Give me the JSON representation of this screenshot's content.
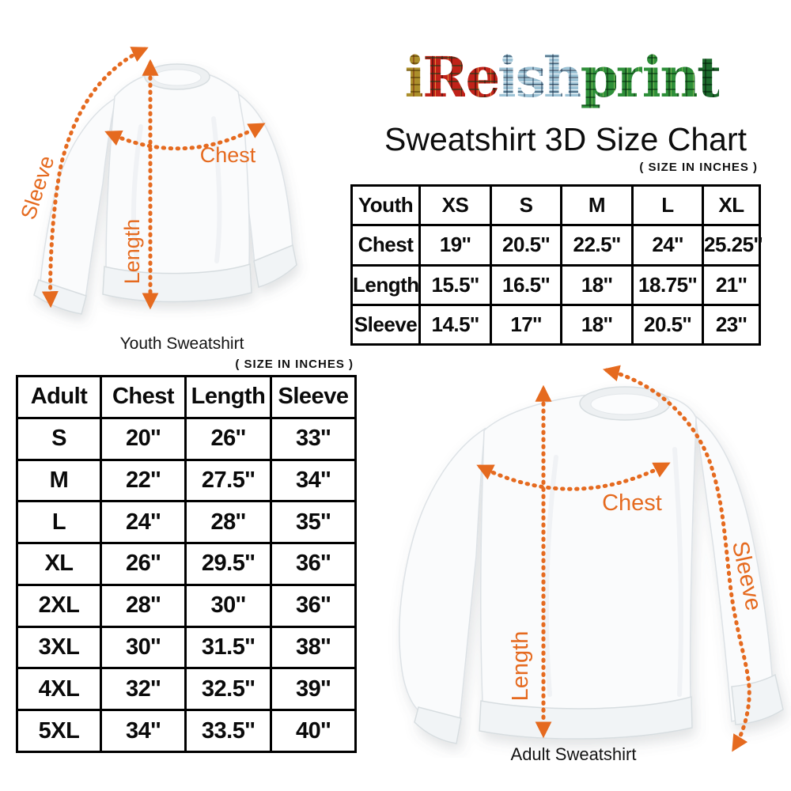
{
  "logo": {
    "text": "iReishprint",
    "letters": [
      {
        "ch": "i",
        "tartan": "gold"
      },
      {
        "ch": "R",
        "tartan": "red"
      },
      {
        "ch": "e",
        "tartan": "red"
      },
      {
        "ch": "i",
        "tartan": "blue"
      },
      {
        "ch": "s",
        "tartan": "blue"
      },
      {
        "ch": "h",
        "tartan": "blue"
      },
      {
        "ch": "p",
        "tartan": "green"
      },
      {
        "ch": "r",
        "tartan": "green"
      },
      {
        "ch": "i",
        "tartan": "green"
      },
      {
        "ch": "n",
        "tartan": "green"
      },
      {
        "ch": "t",
        "tartan": "darkgreen"
      }
    ],
    "tartan_colors": {
      "gold": "#ac8f2b",
      "red": "#c02219",
      "blue": "#9cc2d5",
      "green": "#2e8f39",
      "darkgreen": "#1c6a2c"
    }
  },
  "title": "Sweatshirt 3D Size Chart",
  "youth_section": {
    "size_note": "( SIZE IN INCHES )",
    "caption": "Youth Sweatshirt",
    "labels": {
      "sleeve": "Sleeve",
      "length": "Length",
      "chest": "Chest"
    },
    "table": {
      "header": [
        "Youth",
        "XS",
        "S",
        "M",
        "L",
        "XL"
      ],
      "rows": [
        [
          "Chest",
          "19''",
          "20.5''",
          "22.5''",
          "24''",
          "25.25''"
        ],
        [
          "Length",
          "15.5''",
          "16.5''",
          "18''",
          "18.75''",
          "21''"
        ],
        [
          "Sleeve",
          "14.5''",
          "17''",
          "18''",
          "20.5''",
          "23''"
        ]
      ]
    }
  },
  "adult_section": {
    "size_note": "( SIZE IN INCHES )",
    "caption": "Adult Sweatshirt",
    "labels": {
      "sleeve": "Sleeve",
      "length": "Length",
      "chest": "Chest"
    },
    "table": {
      "header": [
        "Adult",
        "Chest",
        "Length",
        "Sleeve"
      ],
      "rows": [
        [
          "S",
          "20''",
          "26''",
          "33''"
        ],
        [
          "M",
          "22''",
          "27.5''",
          "34''"
        ],
        [
          "L",
          "24''",
          "28''",
          "35''"
        ],
        [
          "XL",
          "26''",
          "29.5''",
          "36''"
        ],
        [
          "2XL",
          "28''",
          "30''",
          "36''"
        ],
        [
          "3XL",
          "30''",
          "31.5''",
          "38''"
        ],
        [
          "4XL",
          "32''",
          "32.5''",
          "39''"
        ],
        [
          "5XL",
          "34''",
          "33.5''",
          "40''"
        ]
      ]
    }
  },
  "colors": {
    "arrow_orange": "#E56A1F",
    "table_border": "#000000",
    "text_black": "#0d0d0d",
    "garment_white": "#fafbfc"
  }
}
